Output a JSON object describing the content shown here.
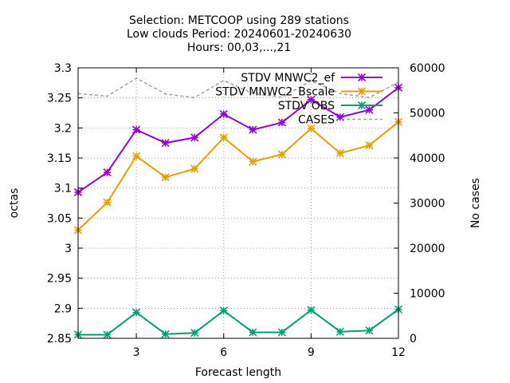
{
  "chart_data": {
    "type": "line",
    "title_lines": [
      "Selection: METCOOP using   289 stations",
      "Low clouds   Period: 20240601-20240630",
      "Hours: 00,03,...,21"
    ],
    "xlabel": "Forecast length",
    "ylabel": "octas",
    "y2label": "No cases",
    "x_ticks": [
      3,
      6,
      9,
      12
    ],
    "xlim": [
      1,
      12
    ],
    "y_ticks": [
      "2.85",
      "2.9",
      "2.95",
      "3",
      "3.05",
      "3.1",
      "3.15",
      "3.2",
      "3.25",
      "3.3"
    ],
    "ylim": [
      2.85,
      3.3
    ],
    "y2_ticks": [
      "0",
      "10000",
      "20000",
      "30000",
      "40000",
      "50000",
      "60000"
    ],
    "y2lim": [
      0,
      60000
    ],
    "grid": true,
    "legend_position": "top-right",
    "x": [
      1,
      2,
      3,
      4,
      5,
      6,
      7,
      8,
      9,
      10,
      11,
      12
    ],
    "series": [
      {
        "name": "STDV MNWC2_ef",
        "axis": "y",
        "color": "#9400d3",
        "marker": "star",
        "dash": false,
        "values": [
          3.093,
          3.126,
          3.197,
          3.175,
          3.184,
          3.223,
          3.197,
          3.209,
          3.247,
          3.218,
          3.23,
          3.267
        ]
      },
      {
        "name": "STDV MNWC2_scale",
        "legend_label": "STDV MNWC2_Bscale",
        "axis": "y",
        "color": "#e69f00",
        "marker": "star",
        "dash": false,
        "values": [
          3.03,
          3.076,
          3.153,
          3.118,
          3.132,
          3.184,
          3.144,
          3.156,
          3.199,
          3.158,
          3.171,
          3.21
        ]
      },
      {
        "name": "STDV OBS",
        "axis": "y",
        "color": "#009e73",
        "marker": "star",
        "dash": false,
        "values": [
          2.856,
          2.856,
          2.893,
          2.857,
          2.859,
          2.896,
          2.86,
          2.86,
          2.897,
          2.861,
          2.863,
          2.898
        ]
      },
      {
        "name": "CASES",
        "axis": "y2",
        "color": "#a0a0a0",
        "marker": "none",
        "dash": true,
        "values": [
          54300,
          53700,
          57700,
          54200,
          53400,
          57200,
          54300,
          53500,
          57100,
          54300,
          53400,
          56800
        ]
      }
    ]
  }
}
